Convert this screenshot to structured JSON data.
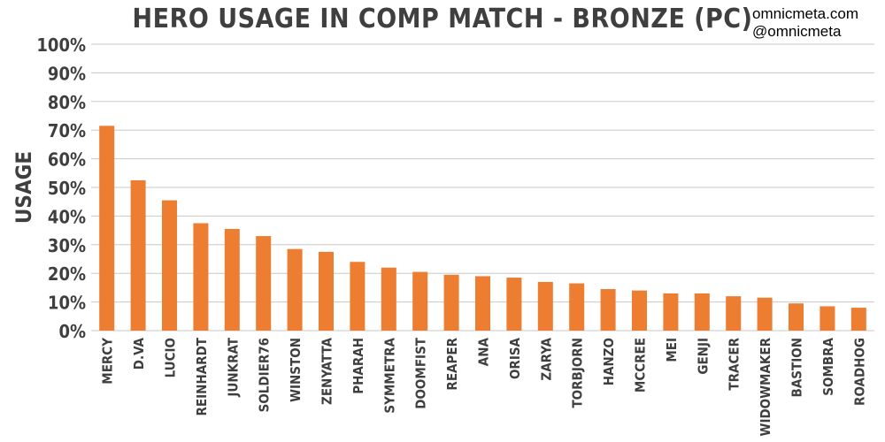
{
  "chart_data": {
    "type": "bar",
    "title": "HERO USAGE IN COMP MATCH - BRONZE (PC)",
    "xlabel": "",
    "ylabel": "USAGE",
    "ylim": [
      0,
      100
    ],
    "yticks": [
      "0%",
      "10%",
      "20%",
      "30%",
      "40%",
      "50%",
      "60%",
      "70%",
      "80%",
      "90%",
      "100%"
    ],
    "grid": true,
    "bar_color": "#ed7d31",
    "categories": [
      "MERCY",
      "D.VA",
      "LUCIO",
      "REINHARDT",
      "JUNKRAT",
      "SOLDIER76",
      "WINSTON",
      "ZENYATTA",
      "PHARAH",
      "SYMMETRA",
      "DOOMFIST",
      "REAPER",
      "ANA",
      "ORISA",
      "ZARYA",
      "TORBJORN",
      "HANZO",
      "MCCREE",
      "MEI",
      "GENJI",
      "TRACER",
      "WIDOWMAKER",
      "BASTION",
      "SOMBRA",
      "ROADHOG"
    ],
    "values": [
      71.5,
      52.5,
      45.5,
      37.5,
      35.5,
      33,
      28.5,
      27.5,
      24,
      22,
      20.5,
      19.5,
      19,
      18.5,
      17,
      16.5,
      14.5,
      14,
      13,
      13,
      12,
      11.5,
      9.5,
      8.5,
      8
    ]
  },
  "credits": {
    "site": "omnicmeta.com",
    "handle": "@omnicmeta"
  }
}
